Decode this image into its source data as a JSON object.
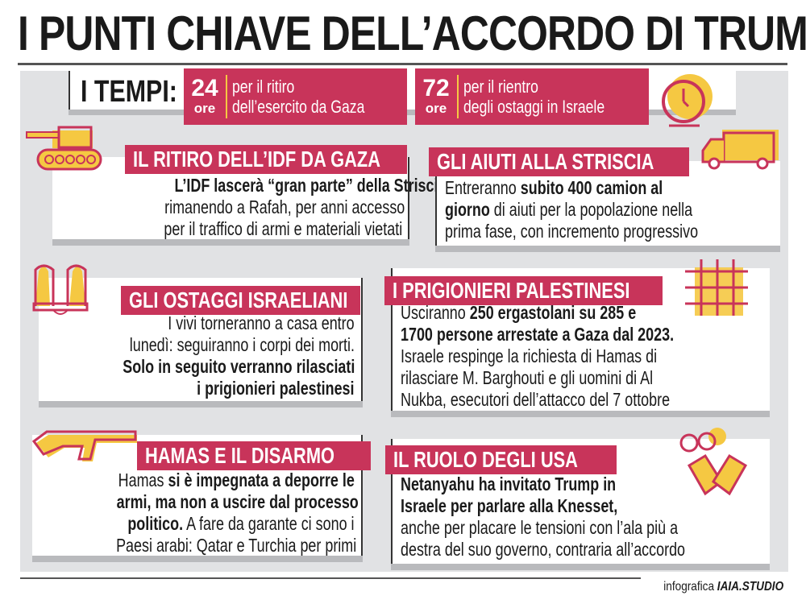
{
  "title": "I PUNTI CHIAVE DELL’ACCORDO DI TRUMP",
  "tempi": {
    "label": "I TEMPI:",
    "items": [
      {
        "num": "24",
        "unit": "ore",
        "line1": "per il ritiro",
        "line2": "dell’esercito da Gaza"
      },
      {
        "num": "72",
        "unit": "ore",
        "line1": "per il rientro",
        "line2": "degli ostaggi in Israele"
      }
    ]
  },
  "colors": {
    "accent": "#c8345a",
    "yellow": "#f5c842",
    "panel": "#e1e2e4"
  },
  "cards": [
    {
      "icon": "tank-icon",
      "title": "IL RITIRO DELL’IDF DA GAZA",
      "lines": [
        [
          {
            "t": "L’IDF lascerà “gran parte” della Striscia,",
            "b": true
          }
        ],
        [
          {
            "t": "rimanendo a Rafah, per anni accesso",
            "b": false
          }
        ],
        [
          {
            "t": "per il traffico di armi e materiali vietati",
            "b": false
          }
        ]
      ]
    },
    {
      "icon": "truck-icon",
      "title": "GLI AIUTI ALLA  STRISCIA",
      "lines": [
        [
          {
            "t": "Entreranno ",
            "b": false
          },
          {
            "t": "subito 400 camion al",
            "b": true
          }
        ],
        [
          {
            "t": "giorno",
            "b": true
          },
          {
            "t": " di aiuti per la popolazione nella",
            "b": false
          }
        ],
        [
          {
            "t": "prima fase, con incremento progressivo",
            "b": false
          }
        ]
      ]
    },
    {
      "icon": "raised-hands-icon",
      "title": "GLI OSTAGGI ISRAELIANI",
      "lines": [
        [
          {
            "t": "I vivi torneranno a casa entro",
            "b": false
          }
        ],
        [
          {
            "t": "lunedì: seguiranno i corpi dei morti.",
            "b": false
          }
        ],
        [
          {
            "t": "Solo in seguito verranno rilasciati",
            "b": true
          }
        ],
        [
          {
            "t": "i prigionieri palestinesi",
            "b": true
          }
        ]
      ]
    },
    {
      "icon": "prison-bars-icon",
      "title": "I PRIGIONIERI PALESTINESI",
      "lines": [
        [
          {
            "t": "Usciranno ",
            "b": false
          },
          {
            "t": "250 ergastolani su 285 e",
            "b": true
          }
        ],
        [
          {
            "t": "1700 persone arrestate a Gaza dal 2023.",
            "b": true
          }
        ],
        [
          {
            "t": "Israele respinge la richiesta di Hamas di",
            "b": false
          }
        ],
        [
          {
            "t": "rilasciare M. Barghouti e gli uomini di Al",
            "b": false
          }
        ],
        [
          {
            "t": "Nukba, esecutori dell’attacco del 7 ottobre",
            "b": false
          }
        ]
      ]
    },
    {
      "icon": "rifle-icon",
      "title": "HAMAS E IL DISARMO",
      "lines": [
        [
          {
            "t": "Hamas ",
            "b": false
          },
          {
            "t": "si è impegnata a deporre le",
            "b": true
          }
        ],
        [
          {
            "t": "armi, ma non a uscire dal processo",
            "b": true
          }
        ],
        [
          {
            "t": "politico.",
            "b": true
          },
          {
            "t": " A fare da garante ci sono i",
            "b": false
          }
        ],
        [
          {
            "t": "Paesi arabi: Qatar e Turchia per primi",
            "b": false
          }
        ]
      ]
    },
    {
      "icon": "handshake-icon",
      "title": "IL RUOLO DEGLI USA",
      "lines": [
        [
          {
            "t": "Netanyahu ha invitato Trump in",
            "b": true
          }
        ],
        [
          {
            "t": "Israele per parlare alla Knesset,",
            "b": true
          }
        ],
        [
          {
            "t": "anche per placare le tensioni con l’ala più  a",
            "b": false
          }
        ],
        [
          {
            "t": "destra del suo governo, contraria all’accordo",
            "b": false
          }
        ]
      ]
    }
  ],
  "credit": {
    "prefix": "infografica ",
    "brand": "IAIA.STUDIO"
  }
}
